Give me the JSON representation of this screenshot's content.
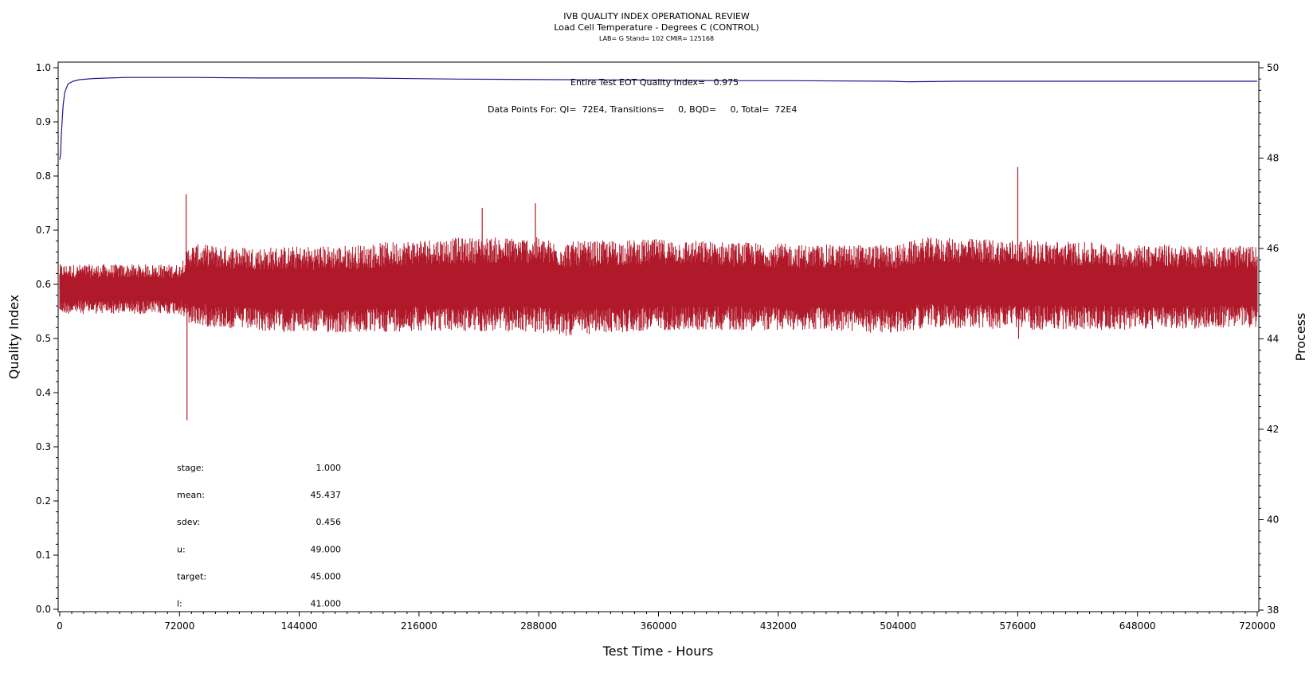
{
  "chart_data": {
    "type": "line",
    "title": "IVB QUALITY INDEX OPERATIONAL REVIEW",
    "subtitle": "Load Cell Temperature - Degrees C (CONTROL)",
    "subtitle2": "LAB= G Stand= 102 CMIR= 125168",
    "xlabel": "Test Time - Hours",
    "ylabel_left": "Quality Index",
    "ylabel_right": "Process",
    "xlim": [
      0,
      720000
    ],
    "ylim_left": [
      0.0,
      1.0
    ],
    "ylim_right": [
      38,
      50
    ],
    "x_ticks": [
      "0",
      "72000",
      "144000",
      "216000",
      "288000",
      "360000",
      "432000",
      "504000",
      "576000",
      "648000",
      "720000"
    ],
    "y_ticks_left": [
      "0.0",
      "0.1",
      "0.2",
      "0.3",
      "0.4",
      "0.5",
      "0.6",
      "0.7",
      "0.8",
      "0.9",
      "1.0"
    ],
    "y_ticks_right": [
      "38",
      "40",
      "42",
      "44",
      "46",
      "48",
      "50"
    ],
    "grid": false,
    "annotations": {
      "eot_quality": "Entire Test EOT Quality Index=   0.975",
      "data_points": "Data Points For: QI=  72E4, Transitions=     0, BQD=     0, Total=  72E4"
    },
    "stats": [
      {
        "label": "stage:",
        "value": "1.000"
      },
      {
        "label": "mean:",
        "value": "45.437"
      },
      {
        "label": "sdev:",
        "value": "0.456"
      },
      {
        "label": "u:",
        "value": "49.000"
      },
      {
        "label": "target:",
        "value": "45.000"
      },
      {
        "label": "l:",
        "value": "41.000"
      }
    ],
    "series": [
      {
        "axis": "left",
        "color": "#1a1a8c",
        "x": [
          0,
          500,
          1000,
          2000,
          3000,
          5000,
          8000,
          12000,
          20000,
          40000,
          80000,
          120000,
          180000,
          240000,
          300000,
          360000,
          400000,
          440000,
          500000,
          510000,
          540000,
          600000,
          660000,
          720000
        ],
        "values": [
          0.83,
          0.84,
          0.88,
          0.93,
          0.955,
          0.97,
          0.975,
          0.978,
          0.98,
          0.982,
          0.982,
          0.981,
          0.981,
          0.979,
          0.978,
          0.977,
          0.976,
          0.976,
          0.975,
          0.974,
          0.975,
          0.975,
          0.975,
          0.975
        ]
      },
      {
        "axis": "right",
        "color": "#b0192a",
        "base_x": [
          0,
          72000,
          78000,
          120000,
          180000,
          216000,
          288000,
          300000,
          360000,
          432000,
          504000,
          520000,
          576000,
          648000,
          720000
        ],
        "base_values": [
          45.1,
          45.1,
          45.2,
          45.1,
          45.1,
          45.2,
          45.2,
          45.1,
          45.2,
          45.15,
          45.1,
          45.25,
          45.2,
          45.15,
          45.15
        ],
        "band_x": [
          0,
          72000,
          78000,
          200000,
          250000,
          300000,
          450000,
          520000,
          576000,
          650000,
          720000
        ],
        "band_halfwidth": [
          0.55,
          0.55,
          0.9,
          1.0,
          1.05,
          1.05,
          0.95,
          1.0,
          1.0,
          0.95,
          0.9
        ],
        "spikes": [
          {
            "x": 0,
            "value": 45.4
          },
          {
            "x": 76000,
            "value": 47.2
          },
          {
            "x": 76500,
            "value": 42.2
          },
          {
            "x": 254000,
            "value": 46.9
          },
          {
            "x": 286000,
            "value": 47.0
          },
          {
            "x": 290000,
            "value": 44.4
          },
          {
            "x": 576000,
            "value": 47.8
          },
          {
            "x": 576500,
            "value": 44.0
          }
        ]
      }
    ]
  }
}
